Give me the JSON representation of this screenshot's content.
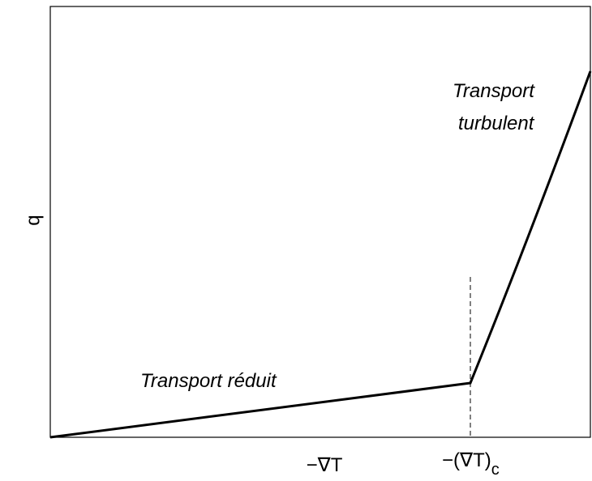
{
  "axes": {
    "x_label": "−∇T",
    "y_label": "q",
    "x_marker": "−(∇T)",
    "x_marker_subscript": "c"
  },
  "annotations": {
    "low": "Transport réduit",
    "high_line1": "Transport",
    "high_line2": "turbulent"
  }
}
